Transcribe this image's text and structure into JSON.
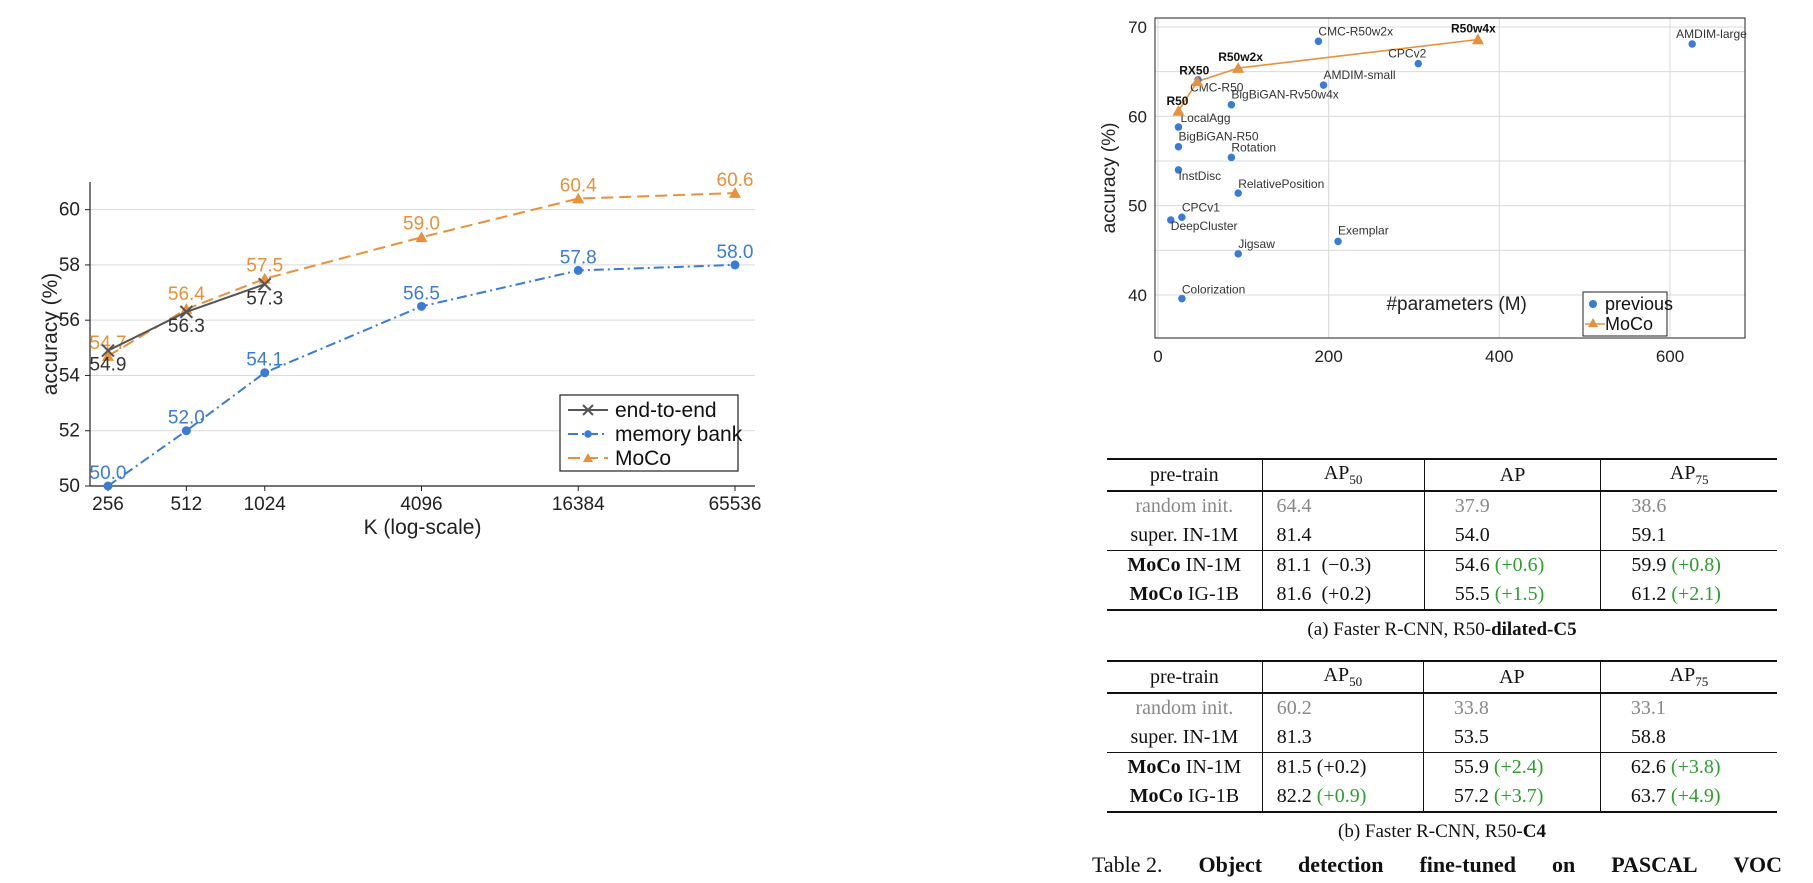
{
  "chart_data": [
    {
      "type": "line",
      "xlabel": "K (log-scale)",
      "ylabel": "accuracy (%)",
      "x_scale": "log",
      "categories": [
        "256",
        "512",
        "1024",
        "4096",
        "16384",
        "65536"
      ],
      "x": [
        256,
        512,
        1024,
        4096,
        16384,
        65536
      ],
      "ylim": [
        50,
        61
      ],
      "yticks": [
        50,
        52,
        54,
        56,
        58,
        60
      ],
      "grid": true,
      "legend_position": "bottom-right",
      "series": [
        {
          "name": "end-to-end",
          "color": "#555555",
          "marker": "x",
          "x": [
            256,
            512,
            1024
          ],
          "values": [
            54.9,
            56.3,
            57.3
          ],
          "labels": [
            "54.9",
            "56.3",
            "57.3"
          ]
        },
        {
          "name": "memory bank",
          "color": "#3a7bd5",
          "marker": "circle",
          "x": [
            256,
            512,
            1024,
            4096,
            16384,
            65536
          ],
          "values": [
            50.0,
            52.0,
            54.1,
            56.5,
            57.8,
            58.0
          ],
          "labels": [
            "50.0",
            "52.0",
            "54.1",
            "56.5",
            "57.8",
            "58.0"
          ]
        },
        {
          "name": "MoCo",
          "color": "#e8913a",
          "marker": "triangle",
          "x": [
            256,
            512,
            1024,
            4096,
            16384,
            65536
          ],
          "values": [
            54.7,
            56.4,
            57.5,
            59.0,
            60.4,
            60.6
          ],
          "labels": [
            "54.7",
            "56.4",
            "57.5",
            "59.0",
            "60.4",
            "60.6"
          ]
        }
      ]
    },
    {
      "type": "scatter",
      "xlabel": "#parameters (M)",
      "ylabel": "accuracy (%)",
      "xlim": [
        0,
        700
      ],
      "ylim": [
        36,
        70
      ],
      "xticks": [
        0,
        200,
        400,
        600
      ],
      "yticks": [
        40,
        50,
        60,
        70
      ],
      "grid": true,
      "legend_position": "bottom-right",
      "series": [
        {
          "name": "previous",
          "color": "#3a7bd5",
          "marker": "circle",
          "points": [
            {
              "label": "CMC-R50w2x",
              "x": 188,
              "y": 68.4
            },
            {
              "label": "AMDIM-large",
              "x": 626,
              "y": 68.1
            },
            {
              "label": "CPCv2",
              "x": 305,
              "y": 65.9
            },
            {
              "label": "CMC-R50",
              "x": 47,
              "y": 64.1
            },
            {
              "label": "AMDIM-small",
              "x": 194,
              "y": 63.5
            },
            {
              "label": "BigBiGAN-Rv50w4x",
              "x": 86,
              "y": 61.3
            },
            {
              "label": "LocalAgg",
              "x": 24,
              "y": 58.8
            },
            {
              "label": "BigBiGAN-R50",
              "x": 24,
              "y": 56.6
            },
            {
              "label": "Rotation",
              "x": 86,
              "y": 55.4
            },
            {
              "label": "InstDisc",
              "x": 24,
              "y": 54.0
            },
            {
              "label": "RelativePosition",
              "x": 94,
              "y": 51.4
            },
            {
              "label": "CPCv1",
              "x": 28,
              "y": 48.7
            },
            {
              "label": "DeepCluster",
              "x": 15,
              "y": 48.4
            },
            {
              "label": "Exemplar",
              "x": 211,
              "y": 46.0
            },
            {
              "label": "Jigsaw",
              "x": 94,
              "y": 44.6
            },
            {
              "label": "Colorization",
              "x": 28,
              "y": 39.6
            }
          ]
        },
        {
          "name": "MoCo",
          "color": "#e8913a",
          "marker": "triangle",
          "points": [
            {
              "label": "R50",
              "x": 24,
              "y": 60.6
            },
            {
              "label": "RX50",
              "x": 46,
              "y": 63.9
            },
            {
              "label": "R50w2x",
              "x": 94,
              "y": 65.4
            },
            {
              "label": "R50w4x",
              "x": 375,
              "y": 68.6
            }
          ]
        }
      ]
    }
  ],
  "tables": [
    {
      "header": [
        "pre-train",
        "AP",
        "50",
        "AP",
        "AP",
        "75"
      ],
      "rows": [
        {
          "name_bold": "",
          "name": "random init.",
          "ap50": "64.4",
          "ap50_delta": "",
          "ap": "37.9",
          "ap_delta": "",
          "ap75": "38.6",
          "ap75_delta": ""
        },
        {
          "name_bold": "",
          "name": "super.  IN-1M",
          "ap50": "81.4",
          "ap50_delta": "",
          "ap": "54.0",
          "ap_delta": "",
          "ap75": "59.1",
          "ap75_delta": ""
        },
        {
          "name_bold": "MoCo",
          "name": "IN-1M",
          "ap50": "81.1",
          "ap50_delta": "(−0.3)",
          "ap": "54.6",
          "ap_delta": "(+0.6)",
          "ap75": "59.9",
          "ap75_delta": "(+0.8)"
        },
        {
          "name_bold": "MoCo",
          "name": "IG-1B",
          "ap50": "81.6",
          "ap50_delta": "(+0.2)",
          "ap": "55.5",
          "ap_delta": "(+1.5)",
          "ap75": "61.2",
          "ap75_delta": "(+2.1)"
        }
      ],
      "caption_prefix": "(a) Faster R-CNN, R50-",
      "caption_bold": "dilated-C5"
    },
    {
      "header": [
        "pre-train",
        "AP",
        "50",
        "AP",
        "AP",
        "75"
      ],
      "rows": [
        {
          "name_bold": "",
          "name": "random init.",
          "ap50": "60.2",
          "ap50_delta": "",
          "ap": "33.8",
          "ap_delta": "",
          "ap75": "33.1",
          "ap75_delta": ""
        },
        {
          "name_bold": "",
          "name": "super.  IN-1M",
          "ap50": "81.3",
          "ap50_delta": "",
          "ap": "53.5",
          "ap_delta": "",
          "ap75": "58.8",
          "ap75_delta": ""
        },
        {
          "name_bold": "MoCo",
          "name": "IN-1M",
          "ap50": "81.5",
          "ap50_delta": "(+0.2)",
          "ap": "55.9",
          "ap_delta": "(+2.4)",
          "ap75": "62.6",
          "ap75_delta": "(+3.8)"
        },
        {
          "name_bold": "MoCo",
          "name": "IG-1B",
          "ap50": "82.2",
          "ap50_delta": "(+0.9)",
          "ap": "57.2",
          "ap_delta": "(+3.7)",
          "ap75": "63.7",
          "ap75_delta": "(+4.9)"
        }
      ],
      "caption_prefix": "(b) Faster R-CNN, R50-",
      "caption_bold": "C4"
    }
  ],
  "table_title": {
    "prefix": "Table 2.",
    "words": [
      "Object",
      "detection",
      "fine-tuned",
      "on",
      "PASCAL",
      "VOC"
    ]
  },
  "colors": {
    "gray_text": "#888888",
    "green_delta": "#2ca02c",
    "grid": "#d9d9d9"
  }
}
